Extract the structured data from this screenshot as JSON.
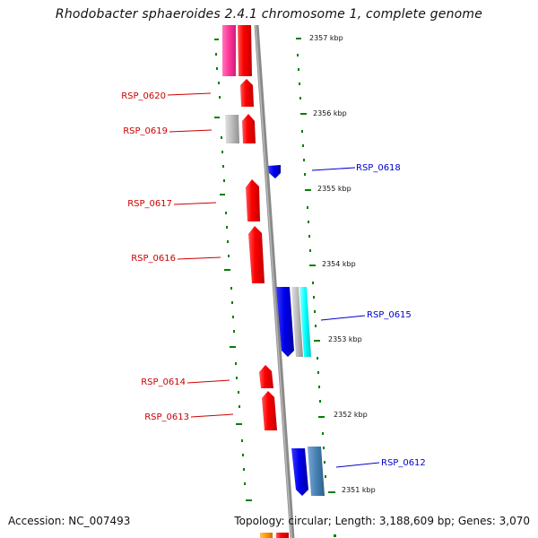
{
  "title": "Rhodobacter sphaeroides 2.4.1 chromosome 1, complete genome",
  "footer": {
    "accession": "Accession: NC_007493",
    "stats": "Topology: circular; Length: 3,188,609 bp; Genes: 3,070"
  },
  "colors": {
    "red": "#ff0000",
    "blue": "#0000ee",
    "magenta": "#ff3399",
    "cyan": "#00ffff",
    "steel": "#4682b4",
    "grey": "#bbbbbb",
    "orange": "#ff9900",
    "backbone": "#888888",
    "tick": "#008000",
    "red_label": "#cc0000",
    "blue_label": "#0000cc"
  },
  "scale": {
    "unit": "kbp",
    "ticks": [
      {
        "label": "2357 kbp"
      },
      {
        "label": "2356 kbp"
      },
      {
        "label": "2355 kbp"
      },
      {
        "label": "2354 kbp"
      },
      {
        "label": "2353 kbp"
      },
      {
        "label": "2352 kbp"
      },
      {
        "label": "2351 kbp"
      }
    ]
  },
  "gene_labels": {
    "left": [
      "RSP_0620",
      "RSP_0619",
      "RSP_0617",
      "RSP_0616",
      "RSP_0614",
      "RSP_0613"
    ],
    "right": [
      "RSP_0618",
      "RSP_0615",
      "RSP_0612"
    ]
  }
}
